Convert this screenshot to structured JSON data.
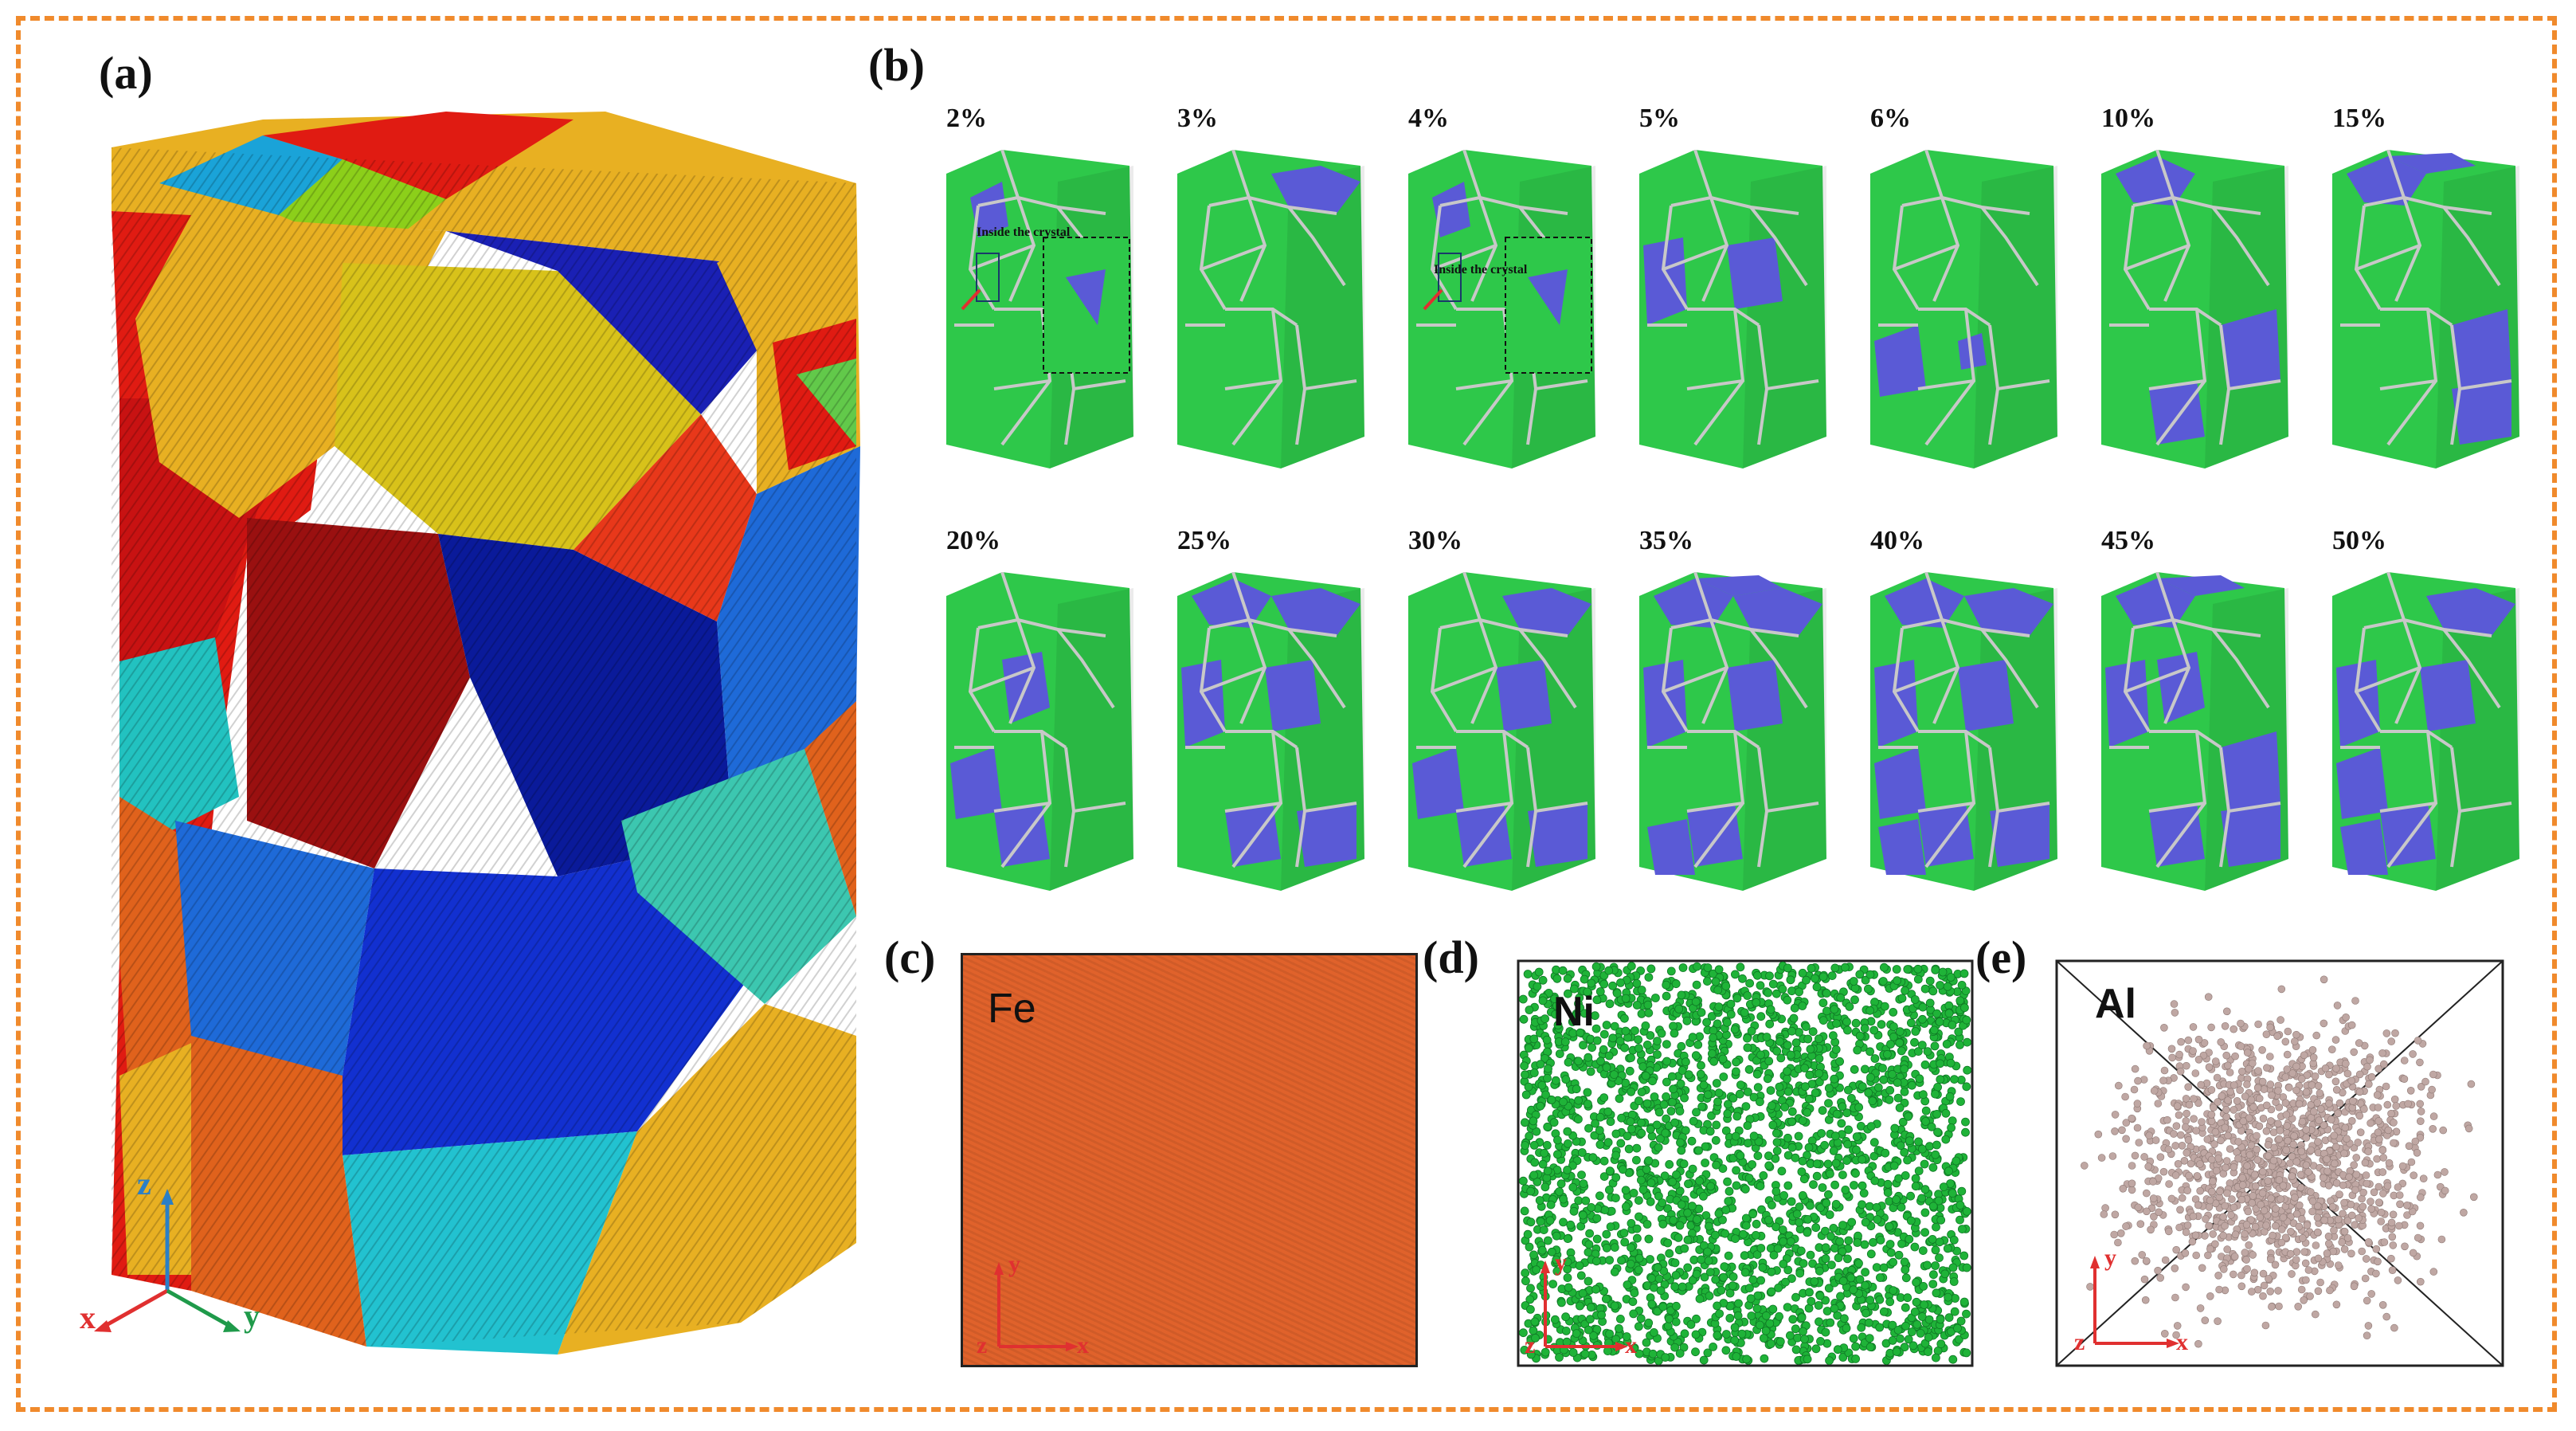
{
  "panels": {
    "a": {
      "label": "(a)"
    },
    "b": {
      "label": "(b)",
      "inset_label": "Inside the crystal"
    },
    "c": {
      "label": "(c)",
      "element": "Fe",
      "color": "#e0622b"
    },
    "d": {
      "label": "(d)",
      "element": "Ni",
      "color": "#1fb338"
    },
    "e": {
      "label": "(e)",
      "element": "Al",
      "color": "#bfa7a3"
    }
  },
  "strain_steps": [
    {
      "label": "2%",
      "blue": [
        "eb",
        "g1"
      ],
      "inset": true
    },
    {
      "label": "3%",
      "blue": [
        "t2"
      ],
      "inset": false
    },
    {
      "label": "4%",
      "blue": [
        "eb"
      ],
      "inset": true
    },
    {
      "label": "5%",
      "blue": [
        "m1",
        "l1"
      ],
      "inset": false
    },
    {
      "label": "6%",
      "blue": [
        "l2",
        "s1"
      ],
      "inset": false
    },
    {
      "label": "10%",
      "blue": [
        "t1",
        "l3",
        "b1"
      ],
      "inset": false
    },
    {
      "label": "15%",
      "blue": [
        "t1",
        "t3",
        "b2",
        "l3"
      ],
      "inset": false
    },
    {
      "label": "20%",
      "blue": [
        "m2",
        "l2",
        "b1"
      ],
      "inset": false
    },
    {
      "label": "25%",
      "blue": [
        "t1",
        "t2",
        "m1",
        "l1",
        "b1",
        "b2"
      ],
      "inset": false
    },
    {
      "label": "30%",
      "blue": [
        "t2",
        "m1",
        "l2",
        "b1",
        "b2"
      ],
      "inset": false
    },
    {
      "label": "35%",
      "blue": [
        "t1",
        "t2",
        "t3",
        "m1",
        "l1",
        "b1",
        "b3"
      ],
      "inset": false
    },
    {
      "label": "40%",
      "blue": [
        "t1",
        "t2",
        "m1",
        "l1",
        "l2",
        "b1",
        "b2",
        "b3"
      ],
      "inset": false
    },
    {
      "label": "45%",
      "blue": [
        "t1",
        "t3",
        "m2",
        "l1",
        "l3",
        "b1",
        "b2"
      ],
      "inset": false
    },
    {
      "label": "50%",
      "blue": [
        "t2",
        "m1",
        "l1",
        "l2",
        "b1",
        "b3"
      ],
      "inset": false
    }
  ],
  "axes_a": {
    "z": "z",
    "x": "x",
    "y": "y"
  },
  "axes_cde": {
    "y": "y",
    "x": "x",
    "z": "z"
  },
  "colors": {
    "frame": "#f08a2c",
    "matrix_green": "#2ec84a",
    "precip_blue": "#5a5ad6",
    "gb_gray": "#c8c8c8",
    "axis_red": "#e03030",
    "axis_green": "#1f9a4a",
    "axis_blue": "#2a7fc7"
  }
}
